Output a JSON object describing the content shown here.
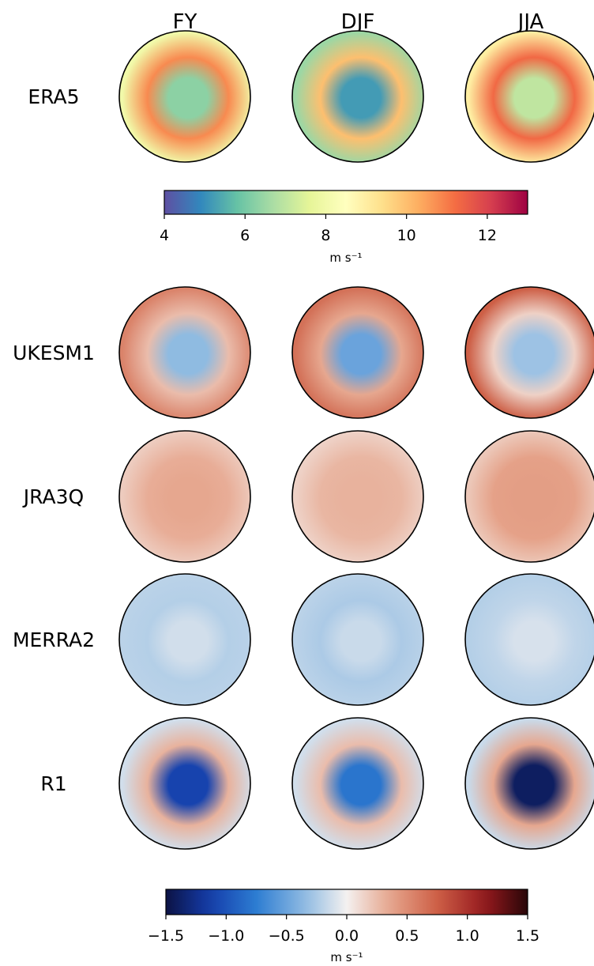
{
  "chart_data": {
    "type": "heatmap",
    "description_kind": "polar-map-panel-grid",
    "columns": [
      "FY",
      "DJF",
      "JJA"
    ],
    "rows": [
      "ERA5",
      "UKESM1",
      "JRA3Q",
      "MERRA2",
      "R1"
    ],
    "panels": {
      "ERA5": {
        "FY": {
          "kind": "abs",
          "inner": 6.3,
          "mid": 10.8,
          "outer": 8.0
        },
        "DJF": {
          "kind": "abs",
          "inner": 5.2,
          "mid": 10.0,
          "outer": 6.5
        },
        "JJA": {
          "kind": "abs",
          "inner": 7.0,
          "mid": 11.3,
          "outer": 9.0
        }
      },
      "UKESM1": {
        "FY": {
          "kind": "diff",
          "inner": -0.35,
          "mid": 0.25,
          "outer": 0.55
        },
        "DJF": {
          "kind": "diff",
          "inner": -0.5,
          "mid": 0.35,
          "outer": 0.65
        },
        "JJA": {
          "kind": "diff",
          "inner": -0.3,
          "mid": 0.15,
          "outer": 0.75
        }
      },
      "JRA3Q": {
        "FY": {
          "kind": "diff",
          "inner": 0.35,
          "mid": 0.32,
          "outer": 0.18
        },
        "DJF": {
          "kind": "diff",
          "inner": 0.3,
          "mid": 0.28,
          "outer": 0.15
        },
        "JJA": {
          "kind": "diff",
          "inner": 0.4,
          "mid": 0.38,
          "outer": 0.2
        }
      },
      "MERRA2": {
        "FY": {
          "kind": "diff",
          "inner": -0.12,
          "mid": -0.22,
          "outer": -0.2
        },
        "DJF": {
          "kind": "diff",
          "inner": -0.15,
          "mid": -0.25,
          "outer": -0.2
        },
        "JJA": {
          "kind": "diff",
          "inner": -0.1,
          "mid": -0.18,
          "outer": -0.22
        }
      },
      "R1": {
        "FY": {
          "kind": "diff",
          "inner": -1.1,
          "mid": 0.3,
          "outer": -0.12
        },
        "DJF": {
          "kind": "diff",
          "inner": -0.8,
          "mid": 0.25,
          "outer": -0.12
        },
        "JJA": {
          "kind": "diff",
          "inner": -1.4,
          "mid": 0.35,
          "outer": -0.15
        }
      }
    },
    "colorbars": [
      {
        "name": "absolute",
        "cmap": "Spectral_r",
        "range": [
          4,
          13
        ],
        "ticks": [
          4,
          6,
          8,
          10,
          12
        ],
        "tick_labels": [
          "4",
          "6",
          "8",
          "10",
          "12"
        ],
        "unit": "m s⁻¹",
        "applies_to": [
          "ERA5"
        ]
      },
      {
        "name": "difference",
        "cmap": "RdBu_r-dark",
        "range": [
          -1.5,
          1.5
        ],
        "ticks": [
          -1.5,
          -1.0,
          -0.5,
          0.0,
          0.5,
          1.0,
          1.5
        ],
        "tick_labels": [
          "−1.5",
          "−1.0",
          "−0.5",
          "0.0",
          "0.5",
          "1.0",
          "1.5"
        ],
        "unit": "m s⁻¹",
        "applies_to": [
          "UKESM1",
          "JRA3Q",
          "MERRA2",
          "R1"
        ]
      }
    ],
    "colors": {
      "land": "#000000",
      "frame": "#000000"
    }
  }
}
